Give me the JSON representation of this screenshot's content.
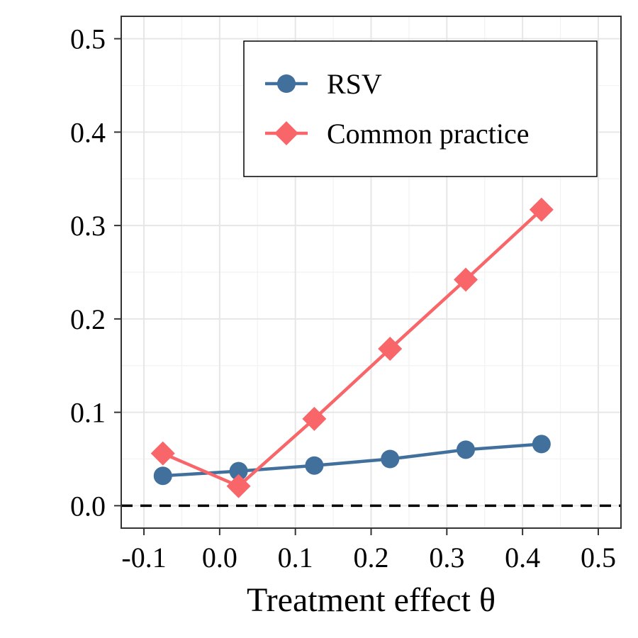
{
  "chart_data": {
    "type": "line",
    "title": "",
    "xlabel": "Treatment effect θ",
    "ylabel": "",
    "xlim": [
      -0.13,
      0.53
    ],
    "ylim": [
      -0.024,
      0.524
    ],
    "x_ticks": [
      -0.1,
      0.0,
      0.1,
      0.2,
      0.3,
      0.4,
      0.5
    ],
    "x_tick_labels": [
      "-0.1",
      "0.0",
      "0.1",
      "0.2",
      "0.3",
      "0.4",
      "0.5"
    ],
    "y_ticks": [
      0.0,
      0.1,
      0.2,
      0.3,
      0.4,
      0.5
    ],
    "y_tick_labels": [
      "0.0",
      "0.1",
      "0.2",
      "0.3",
      "0.4",
      "0.5"
    ],
    "grid": true,
    "legend_position": "top-right",
    "reference_line": {
      "y": 0.0,
      "style": "dashed",
      "color": "#000000"
    },
    "x": [
      -0.075,
      0.025,
      0.125,
      0.225,
      0.325,
      0.425
    ],
    "series": [
      {
        "name": "RSV",
        "marker": "circle",
        "color": "#41709D",
        "values": [
          0.032,
          0.037,
          0.043,
          0.05,
          0.06,
          0.066
        ]
      },
      {
        "name": "Common practice",
        "marker": "diamond",
        "color": "#F8666A",
        "values": [
          0.056,
          0.021,
          0.093,
          0.168,
          0.242,
          0.317
        ]
      }
    ]
  }
}
